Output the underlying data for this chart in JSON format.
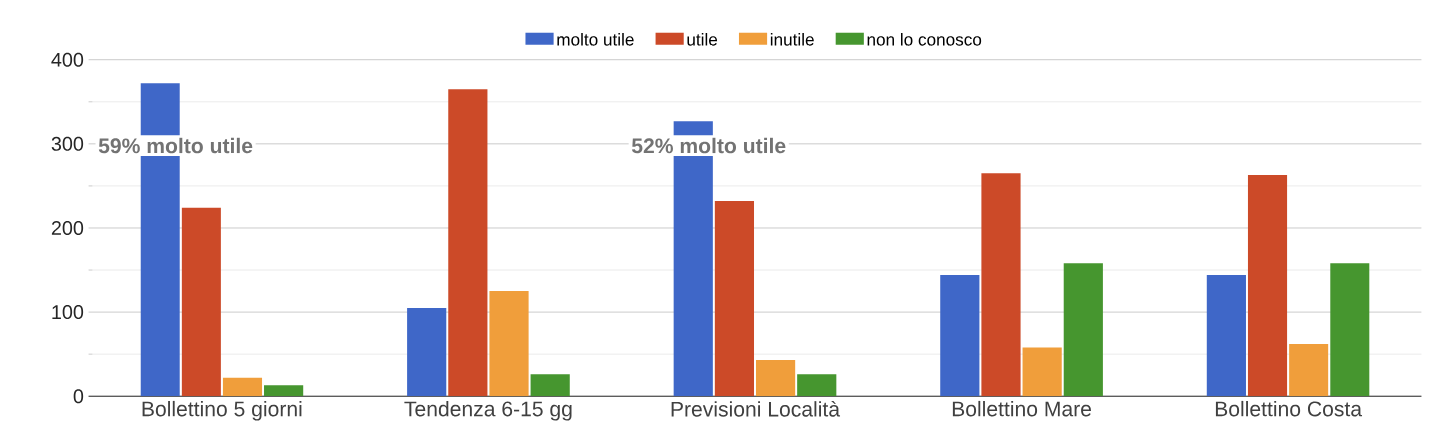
{
  "chart_data": {
    "type": "bar",
    "categories": [
      "Bollettino 5 giorni",
      "Tendenza 6-15 gg",
      "Previsioni Località",
      "Bollettino Mare",
      "Bollettino Costa"
    ],
    "series": [
      {
        "name": "molto utile",
        "color": "#3f67c8",
        "values": [
          372,
          105,
          327,
          144,
          144
        ]
      },
      {
        "name": "utile",
        "color": "#cc4a28",
        "values": [
          224,
          365,
          232,
          265,
          263
        ]
      },
      {
        "name": "inutile",
        "color": "#f09e3b",
        "values": [
          22,
          125,
          43,
          58,
          62
        ]
      },
      {
        "name": "non lo conosco",
        "color": "#46962f",
        "values": [
          13,
          26,
          26,
          158,
          158
        ]
      }
    ],
    "ylim": [
      0,
      400
    ],
    "yticks": [
      0,
      100,
      200,
      300,
      400
    ],
    "grid": "y",
    "legend": "top",
    "annotations": [
      "59% molto utile",
      "52% molto utile"
    ]
  }
}
